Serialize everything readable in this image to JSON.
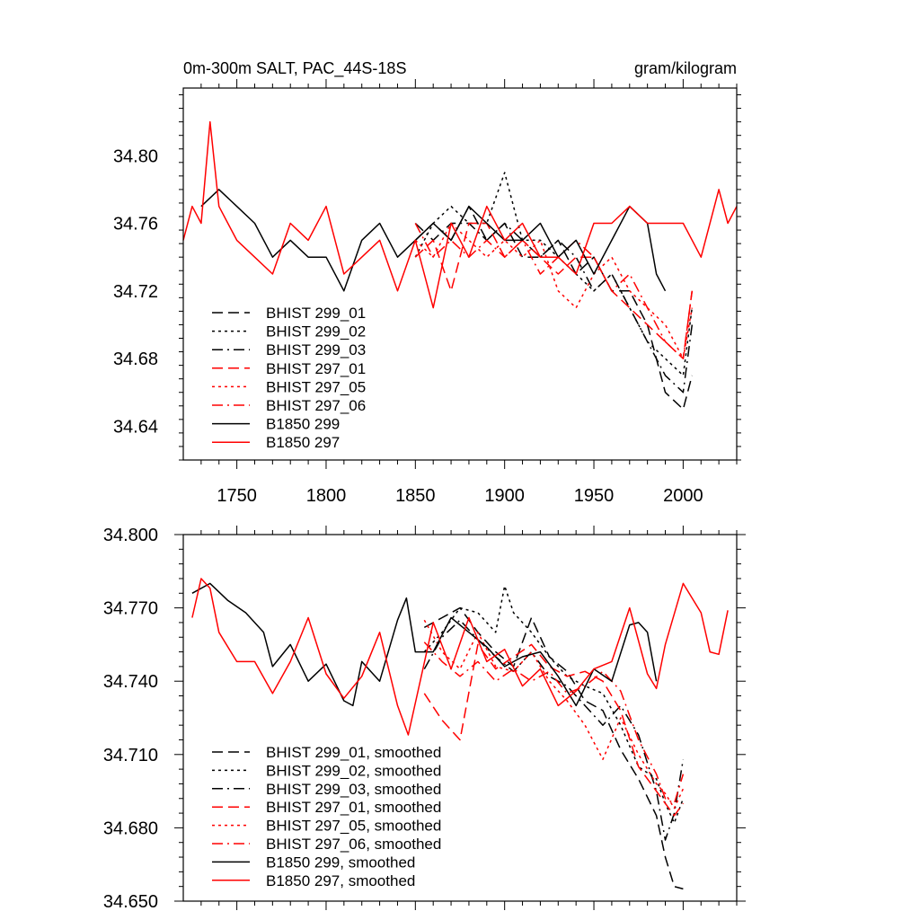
{
  "chart_data": [
    {
      "type": "line",
      "title_left": "0m-300m SALT, PAC_44S-18S",
      "title_right": "gram/kilogram",
      "xlim": [
        1720,
        2030
      ],
      "ylim": [
        34.62,
        34.84
      ],
      "xticks": [
        1750,
        1800,
        1850,
        1900,
        1950,
        2000
      ],
      "yticks": [
        34.64,
        34.68,
        34.72,
        34.76,
        34.8
      ],
      "yticklabels": [
        "34.64",
        "34.68",
        "34.72",
        "34.76",
        "34.80"
      ],
      "legend_position": "bottom-left",
      "series": [
        {
          "name": "BHIST 299_01",
          "color": "#000000",
          "dash": "dashed",
          "x": [
            1850,
            1860,
            1870,
            1880,
            1890,
            1900,
            1910,
            1920,
            1930,
            1940,
            1950,
            1960,
            1970,
            1980,
            1990,
            2000,
            2005
          ],
          "y": [
            34.75,
            34.76,
            34.75,
            34.77,
            34.75,
            34.76,
            34.74,
            34.74,
            34.75,
            34.73,
            34.74,
            34.72,
            34.72,
            34.7,
            34.66,
            34.65,
            34.67
          ]
        },
        {
          "name": "BHIST 299_02",
          "color": "#000000",
          "dash": "dotted",
          "x": [
            1850,
            1860,
            1870,
            1880,
            1890,
            1900,
            1910,
            1920,
            1930,
            1940,
            1950,
            1960,
            1970,
            1980,
            1990,
            2000,
            2005
          ],
          "y": [
            34.74,
            34.76,
            34.77,
            34.76,
            34.76,
            34.79,
            34.75,
            34.75,
            34.74,
            34.73,
            34.72,
            34.73,
            34.71,
            34.69,
            34.68,
            34.67,
            34.71
          ]
        },
        {
          "name": "BHIST 299_03",
          "color": "#000000",
          "dash": "dashdot",
          "x": [
            1850,
            1860,
            1870,
            1880,
            1890,
            1900,
            1910,
            1920,
            1930,
            1940,
            1950,
            1960,
            1970,
            1980,
            1990,
            2000,
            2005
          ],
          "y": [
            34.76,
            34.75,
            34.76,
            34.76,
            34.75,
            34.76,
            34.75,
            34.74,
            34.75,
            34.74,
            34.72,
            34.73,
            34.71,
            34.69,
            34.67,
            34.66,
            34.7
          ]
        },
        {
          "name": "BHIST 297_01",
          "color": "#ff0000",
          "dash": "dashed",
          "x": [
            1850,
            1860,
            1870,
            1880,
            1890,
            1900,
            1910,
            1920,
            1930,
            1940,
            1950,
            1960,
            1970,
            1980,
            1990,
            2000,
            2005
          ],
          "y": [
            34.74,
            34.75,
            34.72,
            34.76,
            34.76,
            34.74,
            34.75,
            34.74,
            34.73,
            34.74,
            34.74,
            34.72,
            34.71,
            34.7,
            34.69,
            34.68,
            34.72
          ]
        },
        {
          "name": "BHIST 297_05",
          "color": "#ff0000",
          "dash": "dotted",
          "x": [
            1850,
            1860,
            1870,
            1880,
            1890,
            1900,
            1910,
            1920,
            1930,
            1940,
            1950,
            1960,
            1970,
            1980,
            1990,
            2000,
            2005
          ],
          "y": [
            34.75,
            34.74,
            34.76,
            34.75,
            34.74,
            34.75,
            34.74,
            34.75,
            34.72,
            34.71,
            34.73,
            34.74,
            34.72,
            34.71,
            34.7,
            34.68,
            34.71
          ]
        },
        {
          "name": "BHIST 297_06",
          "color": "#ff0000",
          "dash": "dashdot",
          "x": [
            1850,
            1860,
            1870,
            1880,
            1890,
            1900,
            1910,
            1920,
            1930,
            1940,
            1950,
            1960,
            1970,
            1980,
            1990,
            2000,
            2005
          ],
          "y": [
            34.76,
            34.74,
            34.75,
            34.74,
            34.75,
            34.74,
            34.75,
            34.73,
            34.74,
            34.75,
            34.74,
            34.72,
            34.73,
            34.71,
            34.69,
            34.68,
            34.72
          ]
        },
        {
          "name": "B1850 299",
          "color": "#000000",
          "dash": "solid",
          "x": [
            1730,
            1740,
            1750,
            1760,
            1770,
            1780,
            1790,
            1800,
            1810,
            1820,
            1830,
            1840,
            1850,
            1860,
            1870,
            1880,
            1890,
            1900,
            1910,
            1920,
            1930,
            1940,
            1950,
            1960,
            1970,
            1980,
            1985,
            1990
          ],
          "y": [
            34.77,
            34.78,
            34.77,
            34.76,
            34.74,
            34.75,
            34.74,
            34.74,
            34.72,
            34.75,
            34.76,
            34.74,
            34.75,
            34.76,
            34.75,
            34.77,
            34.76,
            34.75,
            34.75,
            34.76,
            34.74,
            34.75,
            34.73,
            34.75,
            34.77,
            34.76,
            34.73,
            34.72
          ]
        },
        {
          "name": "B1850 297",
          "color": "#ff0000",
          "dash": "solid",
          "x": [
            1720,
            1725,
            1730,
            1735,
            1740,
            1750,
            1760,
            1770,
            1780,
            1790,
            1800,
            1810,
            1820,
            1830,
            1840,
            1850,
            1860,
            1870,
            1880,
            1890,
            1900,
            1910,
            1920,
            1930,
            1940,
            1950,
            1960,
            1970,
            1980,
            1990,
            2000,
            2010,
            2020,
            2025,
            2030
          ],
          "y": [
            34.75,
            34.77,
            34.76,
            34.82,
            34.77,
            34.75,
            34.74,
            34.73,
            34.76,
            34.75,
            34.77,
            34.73,
            34.74,
            34.75,
            34.72,
            34.75,
            34.71,
            34.76,
            34.74,
            34.77,
            34.75,
            34.76,
            34.74,
            34.74,
            34.73,
            34.76,
            34.76,
            34.77,
            34.76,
            34.76,
            34.76,
            34.74,
            34.78,
            34.76,
            34.77
          ]
        }
      ]
    },
    {
      "type": "line",
      "xlim": [
        1720,
        2030
      ],
      "ylim": [
        34.65,
        34.8
      ],
      "xticks": [
        1750,
        1800,
        1850,
        1900,
        1950,
        2000
      ],
      "yticks": [
        34.65,
        34.68,
        34.71,
        34.74,
        34.77,
        34.8
      ],
      "yticklabels": [
        "34.650",
        "34.680",
        "34.710",
        "34.740",
        "34.770",
        "34.800"
      ],
      "legend_position": "bottom-left",
      "series": [
        {
          "name": "BHIST 299_01, smoothed",
          "color": "#000000",
          "dash": "dashed",
          "x": [
            1855,
            1865,
            1875,
            1885,
            1895,
            1905,
            1915,
            1925,
            1935,
            1945,
            1955,
            1965,
            1975,
            1985,
            1990,
            1995,
            2000
          ],
          "y": [
            34.762,
            34.766,
            34.77,
            34.76,
            34.752,
            34.746,
            34.766,
            34.75,
            34.744,
            34.732,
            34.728,
            34.712,
            34.7,
            34.685,
            34.668,
            34.656,
            34.655
          ]
        },
        {
          "name": "BHIST 299_02, smoothed",
          "color": "#000000",
          "dash": "dotted",
          "x": [
            1855,
            1865,
            1875,
            1885,
            1895,
            1900,
            1905,
            1915,
            1925,
            1935,
            1945,
            1955,
            1965,
            1975,
            1985,
            1990,
            1995,
            2000
          ],
          "y": [
            34.752,
            34.76,
            34.77,
            34.768,
            34.76,
            34.779,
            34.768,
            34.76,
            34.75,
            34.742,
            34.738,
            34.735,
            34.722,
            34.705,
            34.7,
            34.69,
            34.682,
            34.692
          ]
        },
        {
          "name": "BHIST 299_03, smoothed",
          "color": "#000000",
          "dash": "dashdot",
          "x": [
            1855,
            1865,
            1875,
            1885,
            1895,
            1905,
            1915,
            1925,
            1935,
            1945,
            1955,
            1965,
            1975,
            1985,
            1990,
            1995,
            2000
          ],
          "y": [
            34.745,
            34.758,
            34.765,
            34.757,
            34.75,
            34.744,
            34.752,
            34.742,
            34.738,
            34.73,
            34.722,
            34.73,
            34.718,
            34.695,
            34.675,
            34.686,
            34.708
          ]
        },
        {
          "name": "BHIST 297_01, smoothed",
          "color": "#ff0000",
          "dash": "dashed",
          "x": [
            1855,
            1865,
            1875,
            1885,
            1895,
            1905,
            1915,
            1925,
            1935,
            1945,
            1955,
            1965,
            1975,
            1985,
            1990,
            1995,
            2000
          ],
          "y": [
            34.735,
            34.724,
            34.716,
            34.755,
            34.745,
            34.75,
            34.755,
            34.746,
            34.742,
            34.744,
            34.74,
            34.728,
            34.705,
            34.695,
            34.69,
            34.685,
            34.69
          ]
        },
        {
          "name": "BHIST 297_05, smoothed",
          "color": "#ff0000",
          "dash": "dotted",
          "x": [
            1855,
            1865,
            1875,
            1885,
            1895,
            1905,
            1915,
            1925,
            1935,
            1945,
            1955,
            1965,
            1975,
            1985,
            1990,
            1995,
            2000
          ],
          "y": [
            34.765,
            34.752,
            34.745,
            34.76,
            34.746,
            34.744,
            34.752,
            34.74,
            34.732,
            34.722,
            34.708,
            34.725,
            34.71,
            34.698,
            34.694,
            34.688,
            34.696
          ]
        },
        {
          "name": "BHIST 297_06, smoothed",
          "color": "#ff0000",
          "dash": "dashdot",
          "x": [
            1855,
            1865,
            1875,
            1885,
            1895,
            1905,
            1915,
            1925,
            1935,
            1945,
            1955,
            1965,
            1975,
            1985,
            1990,
            1995,
            2000
          ],
          "y": [
            34.756,
            34.748,
            34.742,
            34.748,
            34.74,
            34.745,
            34.74,
            34.744,
            34.735,
            34.738,
            34.744,
            34.736,
            34.716,
            34.702,
            34.692,
            34.69,
            34.702
          ]
        },
        {
          "name": "B1850 299, smoothed",
          "color": "#000000",
          "dash": "solid",
          "x": [
            1725,
            1735,
            1745,
            1755,
            1765,
            1770,
            1780,
            1790,
            1800,
            1810,
            1815,
            1820,
            1830,
            1840,
            1845,
            1850,
            1860,
            1870,
            1880,
            1890,
            1900,
            1910,
            1920,
            1930,
            1940,
            1950,
            1960,
            1970,
            1975,
            1980,
            1985
          ],
          "y": [
            34.776,
            34.78,
            34.773,
            34.768,
            34.76,
            34.746,
            34.755,
            34.74,
            34.747,
            34.732,
            34.73,
            34.748,
            34.74,
            34.765,
            34.774,
            34.752,
            34.752,
            34.766,
            34.76,
            34.754,
            34.746,
            34.75,
            34.752,
            34.742,
            34.73,
            34.745,
            34.74,
            34.763,
            34.764,
            34.76,
            34.74
          ]
        },
        {
          "name": "B1850 297, smoothed",
          "color": "#ff0000",
          "dash": "solid",
          "x": [
            1725,
            1730,
            1735,
            1740,
            1750,
            1760,
            1770,
            1780,
            1790,
            1800,
            1810,
            1820,
            1830,
            1840,
            1846,
            1860,
            1870,
            1880,
            1890,
            1900,
            1910,
            1920,
            1930,
            1940,
            1950,
            1960,
            1970,
            1980,
            1985,
            1990,
            2000,
            2010,
            2015,
            2020,
            2025
          ],
          "y": [
            34.766,
            34.782,
            34.778,
            34.76,
            34.748,
            34.748,
            34.735,
            34.748,
            34.766,
            34.743,
            34.733,
            34.742,
            34.76,
            34.73,
            34.718,
            34.764,
            34.745,
            34.766,
            34.748,
            34.753,
            34.738,
            34.745,
            34.73,
            34.736,
            34.745,
            34.748,
            34.77,
            34.743,
            34.737,
            34.755,
            34.78,
            34.768,
            34.752,
            34.751,
            34.769
          ]
        }
      ]
    }
  ]
}
